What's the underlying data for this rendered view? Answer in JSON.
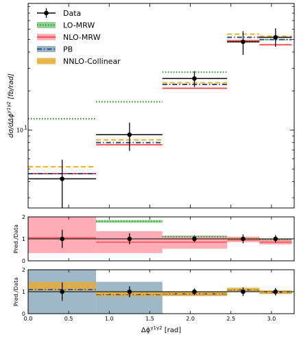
{
  "chart_data": {
    "type": "step",
    "xlabel": "Δϕ^{γ1γ2} [rad]",
    "bin_edges": [
      0,
      0.8378,
      1.6555,
      2.4533,
      2.8522,
      3.2511
    ],
    "legend": [
      "Data",
      "LO-MRW",
      "NLO-MRW",
      "PB",
      "NNLO-Collinear"
    ],
    "colors": {
      "data": "#000000",
      "lo_mrw": "#2f8f2f",
      "lo_mrw_band": "#7fc97f",
      "nlo_mrw": "#ff5050",
      "nlo_mrw_band": "#ff9aa6",
      "pb": "#2a4a88",
      "pb_band": "#8aa8bb",
      "nnlo": "#f5b21f",
      "nnlo_band": "#e3a93b"
    },
    "main_panel": {
      "ylabel": "dσ/dΔϕ^{γ1γ2} [fb/rad]",
      "yscale": "log",
      "ylim": [
        2.5,
        95
      ],
      "yticks": [
        10
      ],
      "ytick_labels": [
        "10^1"
      ],
      "data": {
        "x": [
          0.42,
          1.25,
          2.05,
          2.65,
          3.05
        ],
        "y": [
          4.2,
          9.2,
          25.0,
          48.0,
          52.0
        ],
        "yerr_low": [
          2.1,
          2.3,
          3.5,
          10.0,
          8.0
        ],
        "yerr_high": [
          1.7,
          2.2,
          3.5,
          10.0,
          9.0
        ]
      },
      "series": [
        {
          "name": "LO-MRW",
          "values": [
            12.2,
            16.5,
            28.0,
            48.0,
            50.0
          ]
        },
        {
          "name": "NLO-MRW",
          "values": [
            4.6,
            7.7,
            21.0,
            49.0,
            45.5
          ]
        },
        {
          "name": "PB",
          "values": [
            4.6,
            8.0,
            22.5,
            52.0,
            50.0
          ]
        },
        {
          "name": "NNLO-Collinear",
          "values": [
            5.2,
            8.4,
            23.2,
            55.0,
            53.0
          ]
        }
      ]
    },
    "ratio_panels": [
      {
        "ylabel": "Pred./Data",
        "ylim": [
          0,
          2
        ],
        "yticks": [
          0,
          1,
          2
        ],
        "data": {
          "x": [
            0.42,
            1.25,
            2.05,
            2.65,
            3.05
          ],
          "y": [
            1.0,
            1.0,
            1.0,
            1.0,
            1.0
          ],
          "err": [
            0.42,
            0.25,
            0.15,
            0.2,
            0.17
          ]
        },
        "series": [
          {
            "name": "LO-MRW",
            "values": [
              null,
              1.8,
              1.1,
              1.0,
              0.96
            ],
            "band_low": [
              null,
              1.73,
              1.05,
              0.92,
              0.91
            ],
            "band_high": [
              null,
              1.86,
              1.15,
              1.08,
              1.01
            ]
          },
          {
            "name": "NLO-MRW",
            "values": [
              1.05,
              0.85,
              0.85,
              0.95,
              0.85
            ],
            "band_low": [
              0.35,
              0.35,
              0.55,
              0.85,
              0.75
            ],
            "band_high": [
              2.0,
              1.35,
              1.1,
              1.1,
              1.0
            ]
          }
        ]
      },
      {
        "ylabel": "Pred./Data",
        "ylim": [
          0,
          2
        ],
        "yticks": [
          0,
          1,
          2
        ],
        "xticks": [
          0.0,
          0.5,
          1.0,
          1.5,
          2.0,
          2.5,
          3.0
        ],
        "xtick_labels": [
          "0.0",
          "0.5",
          "1.0",
          "1.5",
          "2.0",
          "2.5",
          "3.0"
        ],
        "data": {
          "x": [
            0.42,
            1.25,
            2.05,
            2.65,
            3.05
          ],
          "y": [
            1.0,
            1.0,
            1.0,
            1.0,
            1.0
          ],
          "err": [
            0.42,
            0.25,
            0.15,
            0.2,
            0.17
          ]
        },
        "series": [
          {
            "name": "PB",
            "values": [
              1.1,
              0.87,
              0.9,
              1.08,
              0.97
            ],
            "band_low": [
              0.0,
              0.0,
              0.82,
              1.0,
              0.9
            ],
            "band_high": [
              2.0,
              1.45,
              1.0,
              1.13,
              1.03
            ]
          },
          {
            "name": "NNLO-Collinear",
            "values": [
              1.25,
              0.9,
              0.92,
              1.1,
              0.98
            ],
            "band_low": [
              1.05,
              0.78,
              0.8,
              1.02,
              0.9
            ],
            "band_high": [
              1.45,
              1.02,
              1.02,
              1.18,
              1.06
            ]
          }
        ]
      }
    ]
  }
}
